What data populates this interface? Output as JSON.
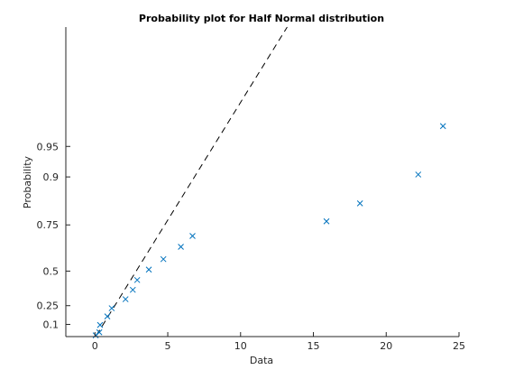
{
  "chart_data": {
    "type": "scatter",
    "title": "Probability plot for Half Normal distribution",
    "xlabel": "Data",
    "ylabel": "Probability",
    "xlim": [
      -2,
      25
    ],
    "x_ticks": [
      0,
      5,
      10,
      15,
      20,
      25
    ],
    "y_scale": "half-normal probability",
    "y_ticks": [
      0.1,
      0.25,
      0.5,
      0.75,
      0.9,
      0.95
    ],
    "y_tick_labels": [
      "0.1",
      "0.25",
      "0.5",
      "0.75",
      "0.9",
      "0.95"
    ],
    "grid": false,
    "marker": "x",
    "marker_color": "#0072BD",
    "reference_line": {
      "style": "dashed",
      "color": "#000000",
      "x": [
        0.1,
        13.2
      ],
      "y": [
        0.01,
        0.9986
      ]
    },
    "points": [
      {
        "x": 0.05,
        "y": 0.01
      },
      {
        "x": 0.3,
        "y": 0.035
      },
      {
        "x": 0.35,
        "y": 0.095
      },
      {
        "x": 0.85,
        "y": 0.165
      },
      {
        "x": 1.15,
        "y": 0.23
      },
      {
        "x": 2.1,
        "y": 0.3
      },
      {
        "x": 2.6,
        "y": 0.37
      },
      {
        "x": 2.9,
        "y": 0.44
      },
      {
        "x": 3.7,
        "y": 0.51
      },
      {
        "x": 4.7,
        "y": 0.575
      },
      {
        "x": 5.9,
        "y": 0.645
      },
      {
        "x": 6.7,
        "y": 0.7
      },
      {
        "x": 15.9,
        "y": 0.765
      },
      {
        "x": 18.2,
        "y": 0.83
      },
      {
        "x": 22.2,
        "y": 0.905
      },
      {
        "x": 23.9,
        "y": 0.97
      }
    ]
  }
}
